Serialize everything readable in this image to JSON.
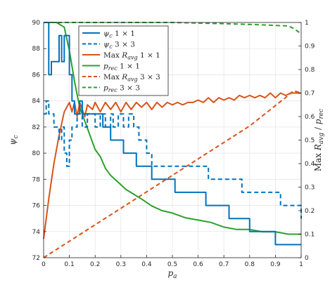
{
  "chart_data": {
    "type": "line",
    "title": "",
    "xlabel": "p_a",
    "ylabel_left": "ψ_c",
    "ylabel_right": "Max R_avg / p_rec",
    "xlim": [
      0,
      1
    ],
    "ylim_left": [
      72,
      90
    ],
    "ylim_right": [
      0,
      1
    ],
    "xticks": [
      0,
      0.1,
      0.2,
      0.3,
      0.4,
      0.5,
      0.6,
      0.7,
      0.8,
      0.9,
      1
    ],
    "xtick_labels": [
      "0",
      "0.1",
      "0.2",
      "0.3",
      "0.4",
      "0.5",
      "0.6",
      "0.7",
      "0.8",
      "0.9",
      "1"
    ],
    "yticks_left": [
      72,
      74,
      76,
      78,
      80,
      82,
      84,
      86,
      88,
      90
    ],
    "ytick_labels_left": [
      "72",
      "74",
      "76",
      "78",
      "80",
      "82",
      "84",
      "86",
      "88",
      "90"
    ],
    "yticks_right": [
      0,
      0.1,
      0.2,
      0.3,
      0.4,
      0.5,
      0.6,
      0.7,
      0.8,
      0.9,
      1
    ],
    "ytick_labels_right": [
      "0",
      "0.1",
      "0.2",
      "0.3",
      "0.4",
      "0.5",
      "0.6",
      "0.7",
      "0.8",
      "0.9",
      "1"
    ],
    "grid": true,
    "legend_position": "top-left",
    "series": [
      {
        "name": "ψ_c 1×1",
        "axis": "left",
        "color": "#0072BD",
        "dash": "solid",
        "step": true,
        "points": [
          [
            0,
            90
          ],
          [
            0.02,
            86
          ],
          [
            0.03,
            87
          ],
          [
            0.05,
            87
          ],
          [
            0.06,
            89
          ],
          [
            0.07,
            87
          ],
          [
            0.08,
            89
          ],
          [
            0.09,
            89
          ],
          [
            0.1,
            86
          ],
          [
            0.11,
            84
          ],
          [
            0.12,
            83
          ],
          [
            0.14,
            84
          ],
          [
            0.15,
            83
          ],
          [
            0.23,
            82
          ],
          [
            0.26,
            81
          ],
          [
            0.31,
            80
          ],
          [
            0.36,
            79
          ],
          [
            0.42,
            78
          ],
          [
            0.51,
            77
          ],
          [
            0.63,
            76
          ],
          [
            0.72,
            75
          ],
          [
            0.8,
            74
          ],
          [
            0.9,
            73
          ],
          [
            1,
            73
          ]
        ]
      },
      {
        "name": "ψ_c 3×3",
        "axis": "left",
        "color": "#0072BD",
        "dash": "dashed",
        "step": true,
        "points": [
          [
            0,
            83
          ],
          [
            0.01,
            84
          ],
          [
            0.02,
            83
          ],
          [
            0.04,
            82
          ],
          [
            0.06,
            81
          ],
          [
            0.07,
            82
          ],
          [
            0.08,
            80
          ],
          [
            0.09,
            79
          ],
          [
            0.1,
            81
          ],
          [
            0.11,
            82
          ],
          [
            0.13,
            83
          ],
          [
            0.15,
            82
          ],
          [
            0.17,
            83
          ],
          [
            0.19,
            83
          ],
          [
            0.2,
            82
          ],
          [
            0.22,
            83
          ],
          [
            0.24,
            82
          ],
          [
            0.26,
            83
          ],
          [
            0.27,
            82
          ],
          [
            0.29,
            83
          ],
          [
            0.31,
            82
          ],
          [
            0.33,
            83
          ],
          [
            0.35,
            82
          ],
          [
            0.37,
            81
          ],
          [
            0.4,
            80
          ],
          [
            0.42,
            79
          ],
          [
            0.52,
            79
          ],
          [
            0.59,
            79
          ],
          [
            0.64,
            78
          ],
          [
            0.72,
            78
          ],
          [
            0.77,
            77
          ],
          [
            0.87,
            77
          ],
          [
            0.92,
            76
          ],
          [
            0.97,
            76
          ],
          [
            1,
            75
          ]
        ]
      },
      {
        "name": "Max R_avg 1×1",
        "axis": "right",
        "color": "#D95319",
        "dash": "solid",
        "step": false,
        "points": [
          [
            0,
            0.08
          ],
          [
            0.02,
            0.25
          ],
          [
            0.04,
            0.4
          ],
          [
            0.06,
            0.52
          ],
          [
            0.08,
            0.62
          ],
          [
            0.1,
            0.66
          ],
          [
            0.11,
            0.62
          ],
          [
            0.12,
            0.66
          ],
          [
            0.13,
            0.6
          ],
          [
            0.14,
            0.66
          ],
          [
            0.16,
            0.6
          ],
          [
            0.17,
            0.65
          ],
          [
            0.19,
            0.63
          ],
          [
            0.2,
            0.66
          ],
          [
            0.22,
            0.62
          ],
          [
            0.24,
            0.66
          ],
          [
            0.26,
            0.63
          ],
          [
            0.28,
            0.66
          ],
          [
            0.3,
            0.62
          ],
          [
            0.32,
            0.66
          ],
          [
            0.34,
            0.63
          ],
          [
            0.36,
            0.66
          ],
          [
            0.38,
            0.64
          ],
          [
            0.4,
            0.66
          ],
          [
            0.42,
            0.63
          ],
          [
            0.44,
            0.66
          ],
          [
            0.46,
            0.64
          ],
          [
            0.48,
            0.66
          ],
          [
            0.5,
            0.65
          ],
          [
            0.52,
            0.66
          ],
          [
            0.54,
            0.65
          ],
          [
            0.56,
            0.66
          ],
          [
            0.58,
            0.66
          ],
          [
            0.6,
            0.67
          ],
          [
            0.62,
            0.66
          ],
          [
            0.64,
            0.68
          ],
          [
            0.66,
            0.66
          ],
          [
            0.68,
            0.68
          ],
          [
            0.7,
            0.67
          ],
          [
            0.72,
            0.68
          ],
          [
            0.74,
            0.67
          ],
          [
            0.76,
            0.69
          ],
          [
            0.78,
            0.68
          ],
          [
            0.8,
            0.69
          ],
          [
            0.82,
            0.68
          ],
          [
            0.84,
            0.69
          ],
          [
            0.86,
            0.68
          ],
          [
            0.88,
            0.7
          ],
          [
            0.9,
            0.68
          ],
          [
            0.92,
            0.7
          ],
          [
            0.94,
            0.69
          ],
          [
            0.96,
            0.7
          ],
          [
            0.98,
            0.7
          ],
          [
            1,
            0.7
          ]
        ]
      },
      {
        "name": "p_rec 1×1",
        "axis": "right",
        "color": "#2CA02C",
        "dash": "solid",
        "step": false,
        "points": [
          [
            0,
            1
          ],
          [
            0.05,
            1
          ],
          [
            0.08,
            0.98
          ],
          [
            0.1,
            0.88
          ],
          [
            0.12,
            0.75
          ],
          [
            0.14,
            0.64
          ],
          [
            0.16,
            0.58
          ],
          [
            0.18,
            0.52
          ],
          [
            0.2,
            0.46
          ],
          [
            0.22,
            0.43
          ],
          [
            0.24,
            0.38
          ],
          [
            0.26,
            0.35
          ],
          [
            0.28,
            0.33
          ],
          [
            0.3,
            0.31
          ],
          [
            0.32,
            0.29
          ],
          [
            0.35,
            0.27
          ],
          [
            0.38,
            0.25
          ],
          [
            0.42,
            0.22
          ],
          [
            0.46,
            0.2
          ],
          [
            0.5,
            0.19
          ],
          [
            0.55,
            0.17
          ],
          [
            0.6,
            0.16
          ],
          [
            0.65,
            0.15
          ],
          [
            0.7,
            0.13
          ],
          [
            0.75,
            0.12
          ],
          [
            0.8,
            0.12
          ],
          [
            0.85,
            0.11
          ],
          [
            0.9,
            0.11
          ],
          [
            0.95,
            0.1
          ],
          [
            1,
            0.1
          ]
        ]
      },
      {
        "name": "Max R_avg 3×3",
        "axis": "right",
        "color": "#D95319",
        "dash": "dashed",
        "step": false,
        "points": [
          [
            0,
            0
          ],
          [
            0.2,
            0.14
          ],
          [
            0.4,
            0.28
          ],
          [
            0.6,
            0.42
          ],
          [
            0.8,
            0.56
          ],
          [
            0.95,
            0.69
          ],
          [
            0.97,
            0.71
          ],
          [
            1,
            0.7
          ]
        ]
      },
      {
        "name": "p_rec 3×3",
        "axis": "right",
        "color": "#2CA02C",
        "dash": "dashed",
        "step": false,
        "points": [
          [
            0,
            1
          ],
          [
            0.5,
            1
          ],
          [
            0.7,
            0.995
          ],
          [
            0.85,
            0.99
          ],
          [
            0.95,
            0.985
          ],
          [
            0.97,
            0.975
          ],
          [
            0.99,
            0.96
          ],
          [
            1,
            0.95
          ]
        ]
      }
    ],
    "legend": [
      {
        "label": "ψc 1 × 1",
        "color": "#0072BD",
        "dash": "solid"
      },
      {
        "label": "ψc 3 × 3",
        "color": "#0072BD",
        "dash": "dashed"
      },
      {
        "label": "Max Ravg 1 × 1",
        "color": "#D95319",
        "dash": "solid"
      },
      {
        "label": "prec 1 × 1",
        "color": "#2CA02C",
        "dash": "solid"
      },
      {
        "label": "Max Ravg 3 × 3",
        "color": "#D95319",
        "dash": "dashed"
      },
      {
        "label": "prec 3 × 3",
        "color": "#2CA02C",
        "dash": "dashed"
      }
    ]
  }
}
